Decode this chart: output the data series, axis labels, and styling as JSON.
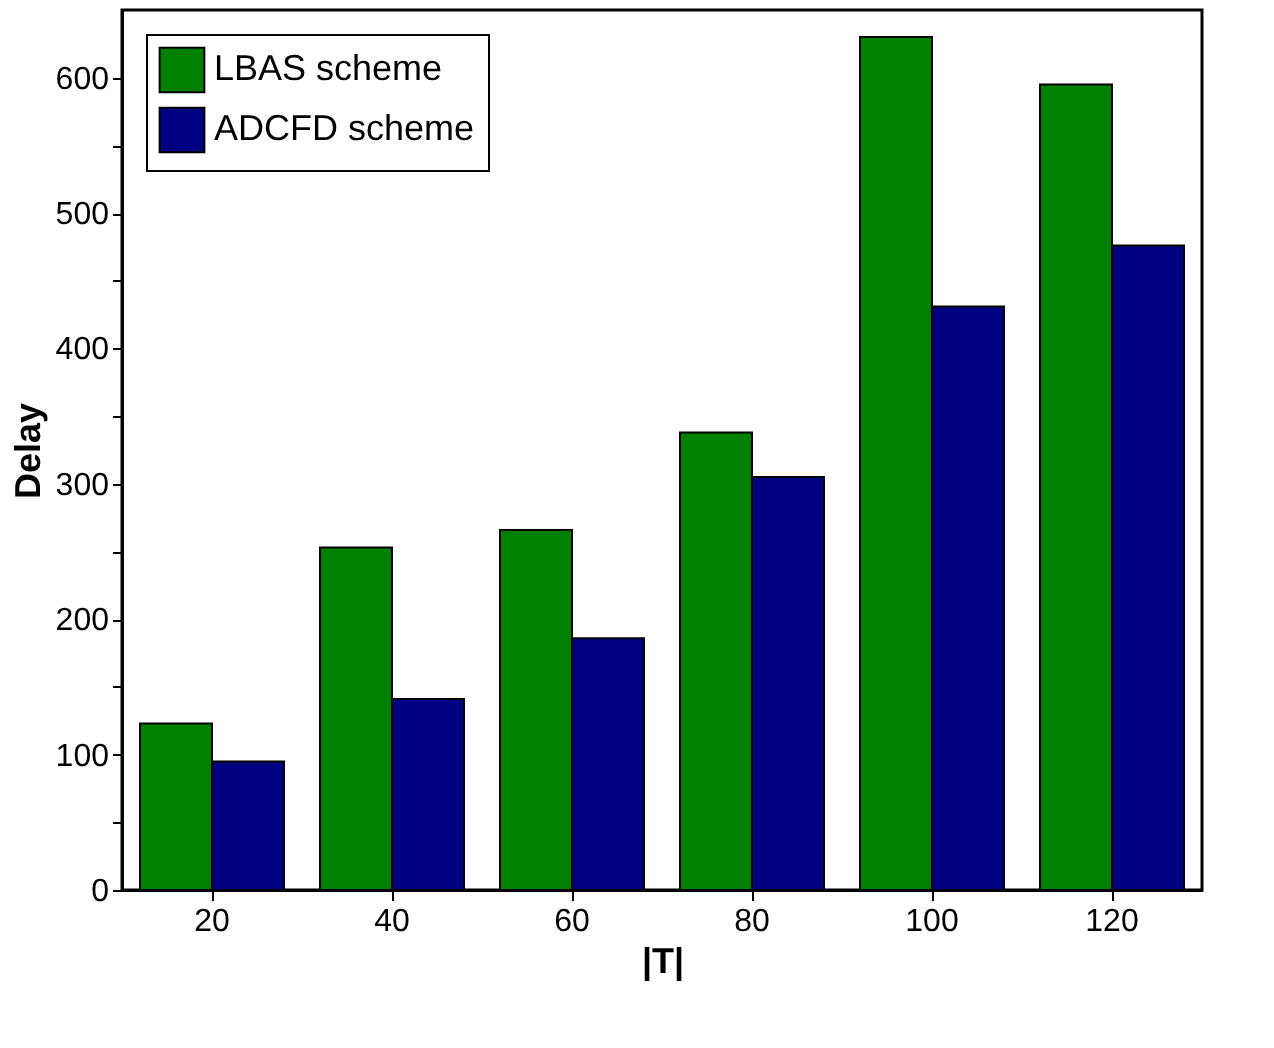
{
  "chart_data": {
    "type": "bar",
    "xlabel": "|T|",
    "ylabel": "Delay",
    "categories": [
      "20",
      "40",
      "60",
      "80",
      "100",
      "120"
    ],
    "series": [
      {
        "name": "LBAS scheme",
        "color": "#008000",
        "values": [
          123,
          253,
          266,
          338,
          630,
          595
        ]
      },
      {
        "name": "ADCFD scheme",
        "color": "#000080",
        "values": [
          95,
          141,
          186,
          305,
          431,
          476
        ]
      }
    ],
    "ylim": [
      0,
      650
    ],
    "yticks": [
      0,
      {
        "value": 50,
        "label": null
      },
      100,
      {
        "value": 150,
        "label": null
      },
      200,
      {
        "value": 250,
        "label": null
      },
      300,
      {
        "value": 350,
        "label": null
      },
      400,
      {
        "value": 450,
        "label": null
      },
      500,
      {
        "value": 550,
        "label": null
      },
      600
    ],
    "legend": "top left",
    "grid": false
  }
}
